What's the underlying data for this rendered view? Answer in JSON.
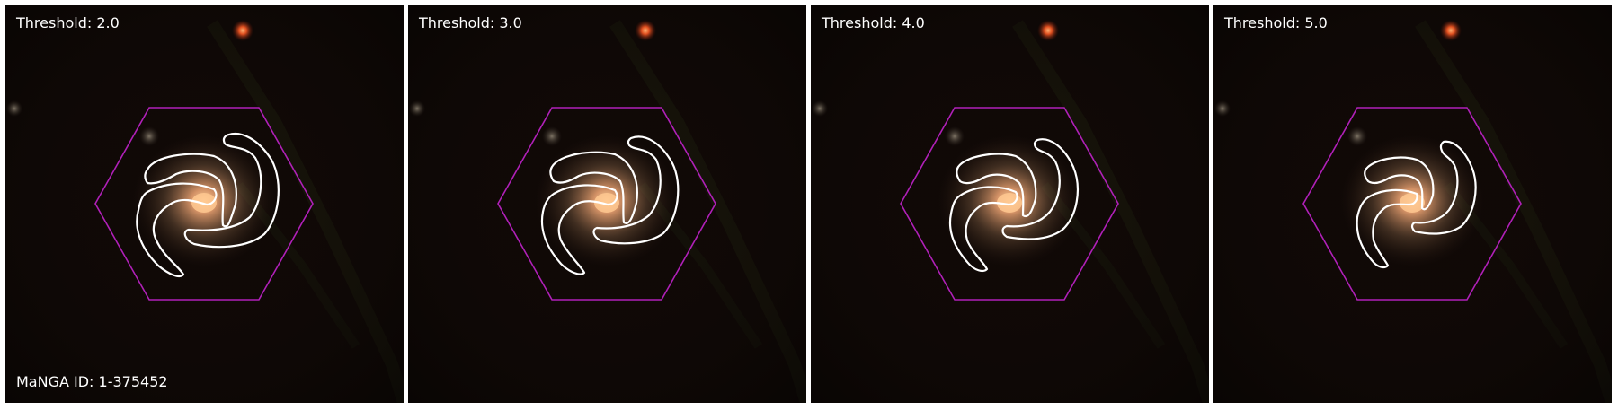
{
  "figure": {
    "panels": [
      {
        "threshold_label": "Threshold: 2.0",
        "threshold": 2.0
      },
      {
        "threshold_label": "Threshold: 3.0",
        "threshold": 3.0
      },
      {
        "threshold_label": "Threshold: 4.0",
        "threshold": 4.0
      },
      {
        "threshold_label": "Threshold: 5.0",
        "threshold": 5.0
      }
    ],
    "manga_id_label": "MaNGA ID: 1-375452",
    "colors": {
      "hexagon": "#b020b8",
      "contour": "#ffffff",
      "sky_background": "#0d0705",
      "galaxy_core": "#f0a060"
    },
    "icons": [
      "hexagon-ifu-footprint",
      "spiral-arm-contours",
      "galaxy-core",
      "foreground-star"
    ]
  }
}
